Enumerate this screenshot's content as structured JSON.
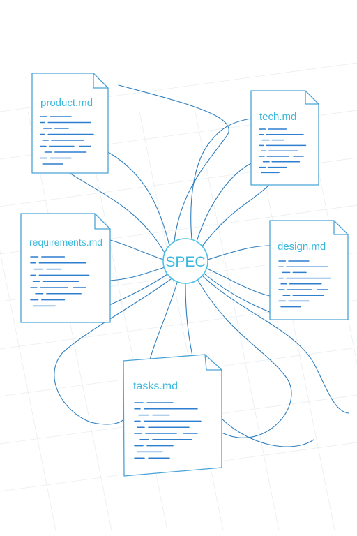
{
  "hub": {
    "label": "SPEC"
  },
  "documents": [
    {
      "name": "product.md"
    },
    {
      "name": "tech.md"
    },
    {
      "name": "requirements.md"
    },
    {
      "name": "design.md"
    },
    {
      "name": "tasks.md"
    }
  ],
  "colors": {
    "title_text": "#3bb8dc",
    "hub_text": "#3bb8dc",
    "hub_stroke": "#4cc3e6",
    "document_stroke": "#4aa3d6",
    "connector": "#2f7fbf",
    "content_lines": "#2f7fd0",
    "grid": "#e9edf1"
  }
}
